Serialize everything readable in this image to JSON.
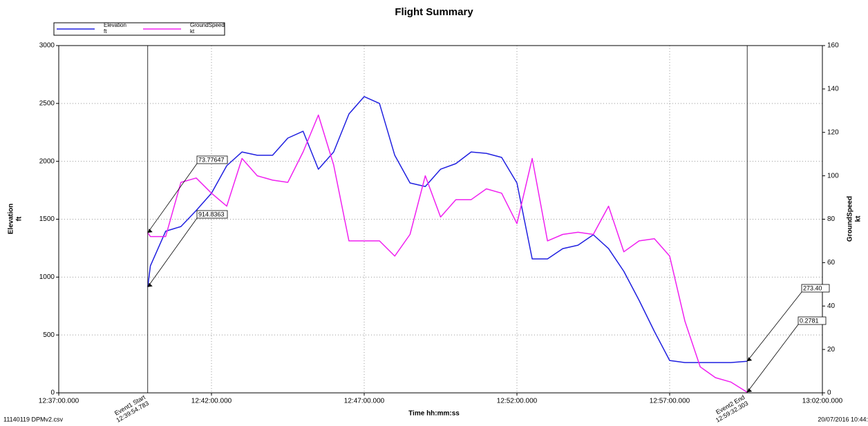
{
  "chart_data": {
    "type": "line",
    "title": "Flight Summary",
    "x_label": "Time hh:mm:ss",
    "y_label": "Elevation",
    "y_unit": "ft",
    "y2_label": "GroundSpeed",
    "y2_unit": "kt",
    "x": [
      "12:39:54.783",
      "12:40:00",
      "12:40:30",
      "12:41:00",
      "12:41:30",
      "12:42:00",
      "12:42:30",
      "12:43:00",
      "12:43:30",
      "12:44:00",
      "12:44:30",
      "12:45:00",
      "12:45:30",
      "12:46:00",
      "12:46:30",
      "12:47:00",
      "12:47:30",
      "12:48:00",
      "12:48:30",
      "12:49:00",
      "12:49:30",
      "12:50:00",
      "12:50:30",
      "12:51:00",
      "12:51:30",
      "12:52:00",
      "12:52:30",
      "12:53:00",
      "12:53:30",
      "12:54:00",
      "12:54:30",
      "12:55:00",
      "12:55:30",
      "12:56:00",
      "12:56:30",
      "12:57:00",
      "12:57:30",
      "12:58:00",
      "12:58:30",
      "12:59:00",
      "12:59:32.303"
    ],
    "series": [
      {
        "name": "Elevation",
        "unit": "ft",
        "color": "#1f1fe0",
        "axis": "y",
        "values": [
          914.8363,
          1097,
          1396,
          1437,
          1575,
          1724,
          1962,
          2081,
          2052,
          2052,
          2201,
          2260,
          1932,
          2081,
          2409,
          2559,
          2500,
          2052,
          1813,
          1783,
          1932,
          1980,
          2081,
          2069,
          2034,
          1813,
          1157,
          1157,
          1246,
          1276,
          1366,
          1246,
          1050,
          799,
          531,
          280,
          262,
          262,
          262,
          262,
          273.4
        ]
      },
      {
        "name": "GroundSpeed",
        "unit": "kt",
        "color": "#f020f0",
        "axis": "y2",
        "values": [
          73.77647,
          72,
          72,
          97,
          99,
          92,
          86,
          108,
          100,
          98,
          97,
          111,
          128,
          105,
          70,
          70,
          70,
          63,
          73,
          100,
          81,
          89,
          89,
          94,
          92,
          78,
          108,
          70,
          73,
          74,
          73,
          86,
          65,
          70,
          71,
          63,
          33,
          12,
          7,
          5,
          0.2781
        ]
      }
    ],
    "xlim": [
      "12:37:00.000",
      "13:02:00.000"
    ],
    "xticks": [
      "12:37:00.000",
      "12:42:00.000",
      "12:47:00.000",
      "12:52:00.000",
      "12:57:00.000",
      "13:02:00.000"
    ],
    "ylim": [
      0,
      3000
    ],
    "yticks": [
      0,
      500,
      1000,
      1500,
      2000,
      2500,
      3000
    ],
    "y2lim": [
      0,
      160
    ],
    "y2ticks": [
      0,
      20,
      40,
      60,
      80,
      100,
      120,
      140,
      160
    ],
    "grid": true,
    "events": [
      {
        "label": "Event1 Start",
        "time": "12:39:54.783"
      },
      {
        "label": "Event2 End",
        "time": "12:59:32.303"
      }
    ],
    "annotations": [
      "73.77647",
      "914.8363",
      "273.40",
      "0.2781"
    ],
    "footer_left": "11140119 DPMv2.csv",
    "footer_right": "20/07/2016 10:44:"
  }
}
